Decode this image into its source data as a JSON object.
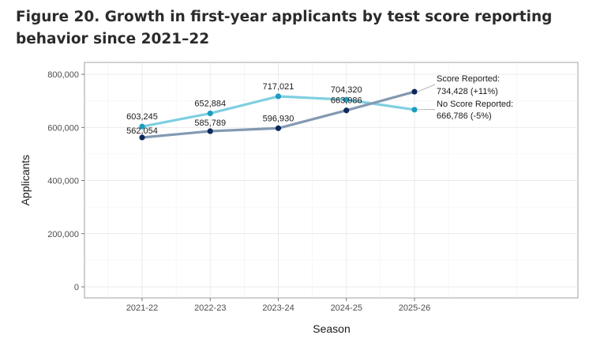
{
  "title": "Figure 20. Growth in first-year applicants by test score reporting behavior since 2021–22",
  "chart_data": {
    "type": "line",
    "title": "Figure 20. Growth in first-year applicants by test score reporting behavior since 2021–22",
    "xlabel": "Season",
    "ylabel": "Applicants",
    "categories": [
      "2021-22",
      "2022-23",
      "2023-24",
      "2024-25",
      "2025-26"
    ],
    "ylim": [
      0,
      800000
    ],
    "yticks": [
      0,
      200000,
      400000,
      600000,
      800000
    ],
    "ytick_labels": [
      "0",
      "200,000",
      "400,000",
      "600,000",
      "800,000"
    ],
    "grid": true,
    "series": [
      {
        "name": "No Score Reported",
        "color": "#7ecfe0",
        "marker_color": "#1c9dc0",
        "values": [
          603245,
          652884,
          717021,
          704320,
          666786
        ],
        "labels": [
          "603,245",
          "652,884",
          "717,021",
          "704,320",
          null
        ],
        "end_label_name": "No Score Reported:",
        "end_label_value": "666,786 (-5%)"
      },
      {
        "name": "Score Reported",
        "color": "#8499b2",
        "marker_color": "#0d2a5c",
        "values": [
          562054,
          585789,
          596930,
          663986,
          734428
        ],
        "labels": [
          "562,054",
          "585,789",
          "596,930",
          "663,986",
          null
        ],
        "end_label_name": "Score Reported:",
        "end_label_value": "734,428 (+11%)"
      }
    ]
  }
}
